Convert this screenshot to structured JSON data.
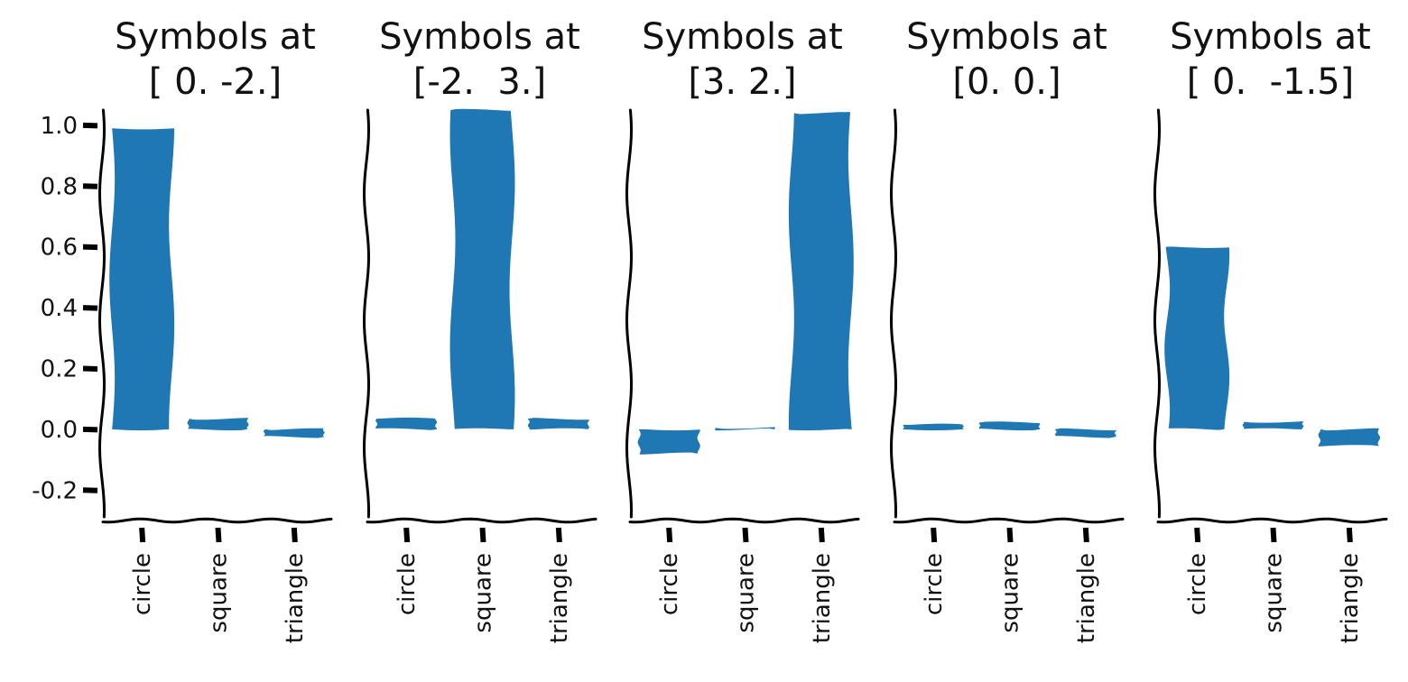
{
  "chart_data": [
    {
      "type": "bar",
      "title": [
        "Symbols at",
        "[ 0. -2.]"
      ],
      "categories": [
        "circle",
        "square",
        "triangle"
      ],
      "values": [
        0.99,
        0.035,
        -0.025
      ],
      "ylim": [
        -0.3,
        1.05
      ],
      "yticks": [
        "1.0",
        "0.8",
        "0.6",
        "0.4",
        "0.2",
        "0.0",
        "-0.2"
      ],
      "show_yticks": true
    },
    {
      "type": "bar",
      "title": [
        "Symbols at",
        "[-2.  3.]"
      ],
      "categories": [
        "circle",
        "square",
        "triangle"
      ],
      "values": [
        0.035,
        1.05,
        0.035
      ],
      "ylim": [
        -0.3,
        1.05
      ],
      "show_yticks": false
    },
    {
      "type": "bar",
      "title": [
        "Symbols at",
        "[3. 2.]"
      ],
      "categories": [
        "circle",
        "square",
        "triangle"
      ],
      "values": [
        -0.08,
        0.005,
        1.04
      ],
      "ylim": [
        -0.3,
        1.05
      ],
      "show_yticks": false
    },
    {
      "type": "bar",
      "title": [
        "Symbols at",
        "[0. 0.]"
      ],
      "categories": [
        "circle",
        "square",
        "triangle"
      ],
      "values": [
        0.015,
        0.022,
        -0.025
      ],
      "ylim": [
        -0.3,
        1.05
      ],
      "show_yticks": false
    },
    {
      "type": "bar",
      "title": [
        "Symbols at",
        "[ 0.  -1.5]"
      ],
      "categories": [
        "circle",
        "square",
        "triangle"
      ],
      "values": [
        0.6,
        0.025,
        -0.055
      ],
      "ylim": [
        -0.3,
        1.05
      ],
      "show_yticks": false
    }
  ],
  "colors": {
    "bar": "#1f77b4",
    "axis": "#000000"
  }
}
